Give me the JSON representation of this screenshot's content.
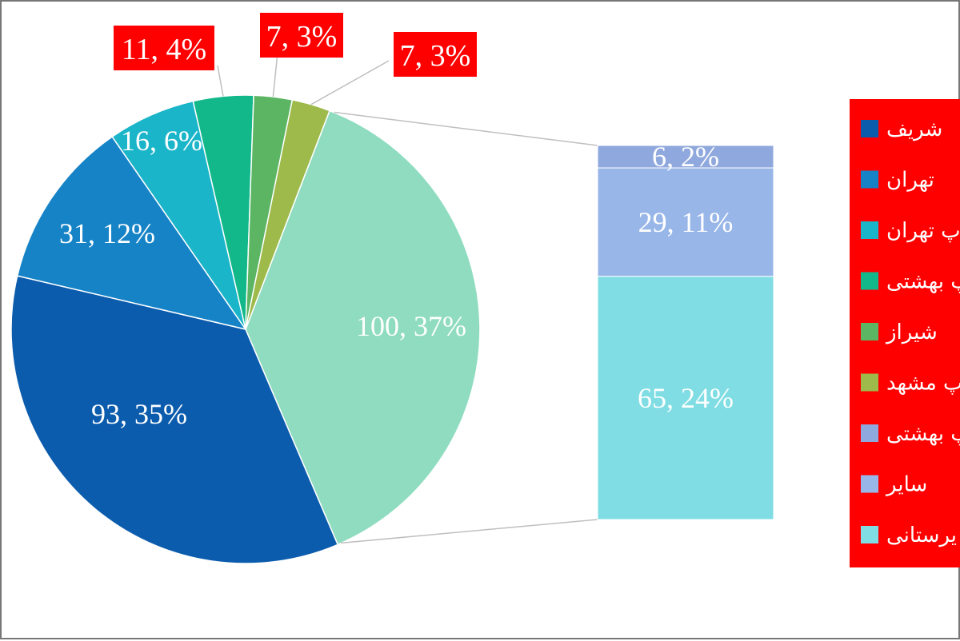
{
  "chart_data": {
    "type": "pie",
    "title": "",
    "slices": [
      {
        "label": "100, 37%",
        "value": 100,
        "percent": 37,
        "color": "#8fdcc0",
        "legend_text": ""
      },
      {
        "label": "93, 35%",
        "value": 93,
        "percent": 35,
        "color": "#0c5cad",
        "legend_text": "شریف"
      },
      {
        "label": "31, 12%",
        "value": 31,
        "percent": 12,
        "color": "#1683c7",
        "legend_text": "تهران"
      },
      {
        "label": "16, 6%",
        "value": 16,
        "percent": 6,
        "color": "#1bb5c9",
        "legend_text": "پ تهران"
      },
      {
        "label": "11, 4%",
        "value": 11,
        "percent": 4,
        "color": "#13b88a",
        "legend_text": "پ بهشتی"
      },
      {
        "label": "7, 3%",
        "value": 7,
        "percent": 3,
        "color": "#5bb563",
        "legend_text": "شیراز"
      },
      {
        "label": "7, 3%",
        "value": 7,
        "percent": 3,
        "color": "#9dba4a",
        "legend_text": "پ مشهد"
      }
    ],
    "breakdown_bar": {
      "of_slice": "100, 37%",
      "segments": [
        {
          "label": "6, 2%",
          "value": 6,
          "percent": 2,
          "color": "#8fa8dd",
          "legend_text": "پ بهشتی"
        },
        {
          "label": "29, 11%",
          "value": 29,
          "percent": 11,
          "color": "#98b6e8",
          "legend_text": "سایر"
        },
        {
          "label": "65, 24%",
          "value": 65,
          "percent": 24,
          "color": "#7fdde3",
          "legend_text": "یرستانی"
        }
      ]
    },
    "legend": {
      "placement": "right",
      "background": "#ff0000",
      "entries": [
        {
          "text": "شریف",
          "color": "#0c5cad"
        },
        {
          "text": "تهران",
          "color": "#1683c7"
        },
        {
          "text": "پ تهران",
          "color": "#1bb5c9"
        },
        {
          "text": "پ بهشتی",
          "color": "#13b88a"
        },
        {
          "text": "شیراز",
          "color": "#5bb563"
        },
        {
          "text": "پ مشهد",
          "color": "#9dba4a"
        },
        {
          "text": "پ بهشتی",
          "color": "#8fa8dd"
        },
        {
          "text": "سایر",
          "color": "#98b6e8"
        },
        {
          "text": "یرستانی",
          "color": "#7fdde3"
        }
      ]
    }
  }
}
